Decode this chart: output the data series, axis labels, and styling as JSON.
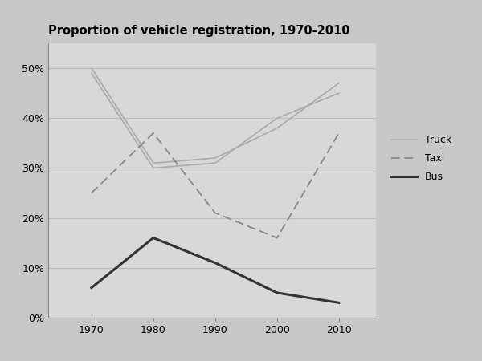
{
  "title": "Proportion of vehicle registration, 1970-2010",
  "years": [
    1970,
    1980,
    1990,
    2000,
    2010
  ],
  "truck1": [
    50,
    31,
    32,
    38,
    47
  ],
  "truck2": [
    49,
    30,
    31,
    40,
    45
  ],
  "taxi": [
    25,
    37,
    21,
    16,
    37
  ],
  "bus": [
    6,
    16,
    11,
    5,
    3
  ],
  "yticks": [
    0,
    10,
    20,
    30,
    40,
    50
  ],
  "yticklabels": [
    "0%",
    "10%",
    "20%",
    "30%",
    "40%",
    "50%"
  ],
  "truck_color": "#aaaaaa",
  "taxi_color": "#888888",
  "bus_color": "#333333",
  "legend_labels": [
    "Truck",
    "Taxi",
    "Bus"
  ],
  "fig_bg_color": "#c8c8c8",
  "plot_bg_color": "#d8d8d8",
  "grid_color": "#bbbbbb"
}
